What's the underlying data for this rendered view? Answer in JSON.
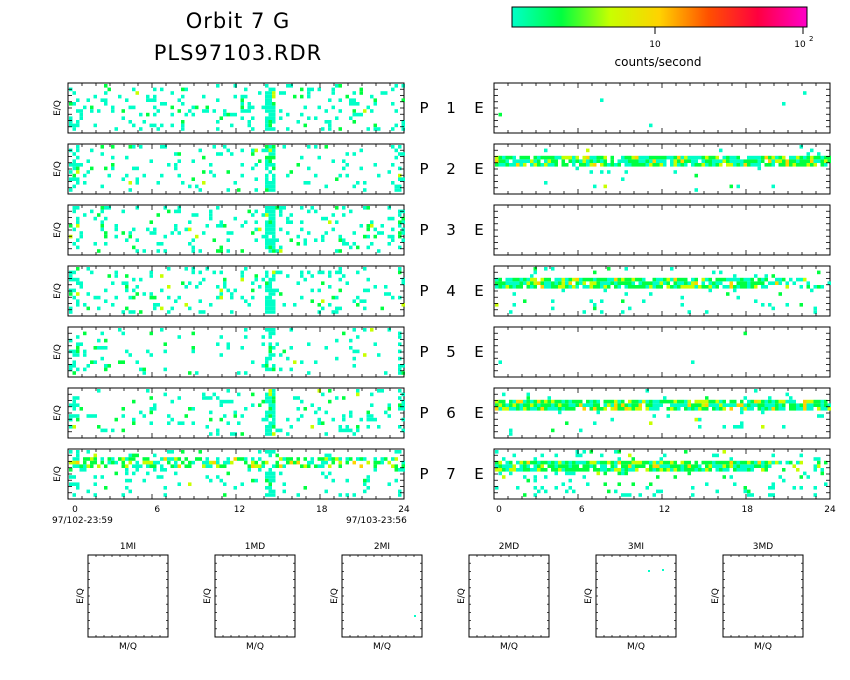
{
  "title": {
    "line1": "Orbit 7 G",
    "line2": "PLS97103.RDR"
  },
  "colorbar": {
    "colors": [
      "#00ffc8",
      "#00ff40",
      "#c8ff00",
      "#ffd200",
      "#ff5000",
      "#ff0040",
      "#ff00c8"
    ],
    "tick_10": "10",
    "tick_100": "10",
    "tick_100_exp": "2",
    "label": "counts/second"
  },
  "chart_data": [
    {
      "type": "heatmap",
      "name": "P-channel spectrograms (left)",
      "ylabel": "E/Q",
      "x_ticks": [
        "0",
        "6",
        "12",
        "18",
        "24"
      ],
      "xlim": [
        0,
        24
      ],
      "start_label": "97/102-23:59",
      "end_label": "97/103-23:56",
      "colors": [
        "#00ffc8",
        "#00ff40",
        "#c8ff00",
        "#ffd200"
      ],
      "rows": [
        {
          "id": "P1",
          "density": 0.14,
          "band": [
            13.8,
            14.6
          ],
          "band_density": 0.85
        },
        {
          "id": "P2",
          "density": 0.1,
          "band": [
            13.8,
            14.6
          ],
          "band_density": 0.85
        },
        {
          "id": "P3",
          "density": 0.14,
          "band": [
            13.8,
            14.6
          ],
          "band_density": 0.85
        },
        {
          "id": "P4",
          "density": 0.12,
          "band": [
            13.8,
            14.6
          ],
          "band_density": 0.85
        },
        {
          "id": "P5",
          "density": 0.07,
          "band": [
            13.8,
            14.6
          ],
          "band_density": 0.55
        },
        {
          "id": "P6",
          "density": 0.12,
          "band": [
            13.8,
            14.6
          ],
          "band_density": 0.85
        },
        {
          "id": "P7",
          "density": 0.08,
          "band": [
            13.8,
            14.6
          ],
          "band_density": 0.6,
          "stripe": true
        }
      ]
    },
    {
      "type": "heatmap",
      "name": "E-channel spectrograms (right)",
      "x_ticks": [
        "0",
        "6",
        "12",
        "18",
        "24"
      ],
      "xlim": [
        0,
        24
      ],
      "colors": [
        "#00ffc8",
        "#00ff40",
        "#c8ff00",
        "#ffd200"
      ],
      "rows": [
        {
          "id": "E1",
          "density": 0.003
        },
        {
          "id": "E2",
          "density": 0.02,
          "stripe": true
        },
        {
          "id": "E3",
          "density": 0.0
        },
        {
          "id": "E4",
          "density": 0.08,
          "stripe": true
        },
        {
          "id": "E5",
          "density": 0.004
        },
        {
          "id": "E6",
          "density": 0.03,
          "stripe": true
        },
        {
          "id": "E7",
          "density": 0.1,
          "stripe": true
        }
      ]
    }
  ],
  "row_labels": [
    {
      "p": "P",
      "n": "1",
      "e": "E"
    },
    {
      "p": "P",
      "n": "2",
      "e": "E"
    },
    {
      "p": "P",
      "n": "3",
      "e": "E"
    },
    {
      "p": "P",
      "n": "4",
      "e": "E"
    },
    {
      "p": "P",
      "n": "5",
      "e": "E"
    },
    {
      "p": "P",
      "n": "6",
      "e": "E"
    },
    {
      "p": "P",
      "n": "7",
      "e": "E"
    }
  ],
  "small_panels": [
    {
      "title": "1MI",
      "ylabel": "E/Q",
      "xlabel": "M/Q"
    },
    {
      "title": "1MD",
      "ylabel": "E/Q",
      "xlabel": "M/Q"
    },
    {
      "title": "2MI",
      "ylabel": "E/Q",
      "xlabel": "M/Q"
    },
    {
      "title": "2MD",
      "ylabel": "E/Q",
      "xlabel": "M/Q"
    },
    {
      "title": "3MI",
      "ylabel": "E/Q",
      "xlabel": "M/Q"
    },
    {
      "title": "3MD",
      "ylabel": "E/Q",
      "xlabel": "M/Q"
    }
  ]
}
